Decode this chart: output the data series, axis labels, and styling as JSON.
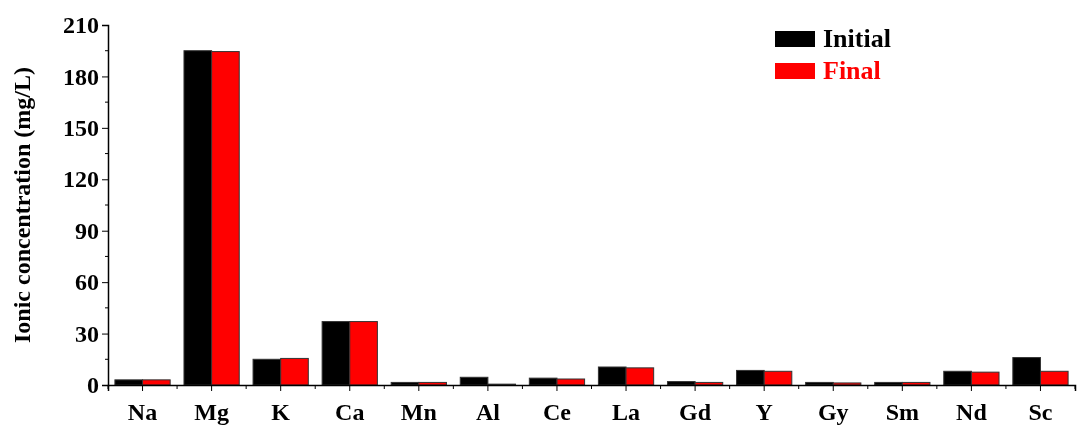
{
  "chart_data": {
    "type": "bar",
    "ylabel": "Ionic concentration (mg/L)",
    "categories": [
      "Na",
      "Mg",
      "K",
      "Ca",
      "Mn",
      "Al",
      "Ce",
      "La",
      "Gd",
      "Y",
      "Gy",
      "Sm",
      "Nd",
      "Sc"
    ],
    "series": [
      {
        "name": "Initial",
        "color": "#000000",
        "values": [
          3,
          195,
          15,
          37,
          1.5,
          4.5,
          4,
          10.5,
          2,
          8.5,
          1.5,
          1.5,
          8,
          16
        ]
      },
      {
        "name": "Final",
        "color": "#ff0000",
        "values": [
          3,
          194.5,
          15.5,
          37,
          1.5,
          0.5,
          3.5,
          10,
          1.5,
          8,
          1.2,
          1.5,
          7.5,
          8
        ]
      }
    ],
    "ylim": [
      0,
      210
    ],
    "yticks": [
      0,
      30,
      60,
      90,
      120,
      150,
      180,
      210
    ],
    "legend": "top right",
    "grid": false
  }
}
